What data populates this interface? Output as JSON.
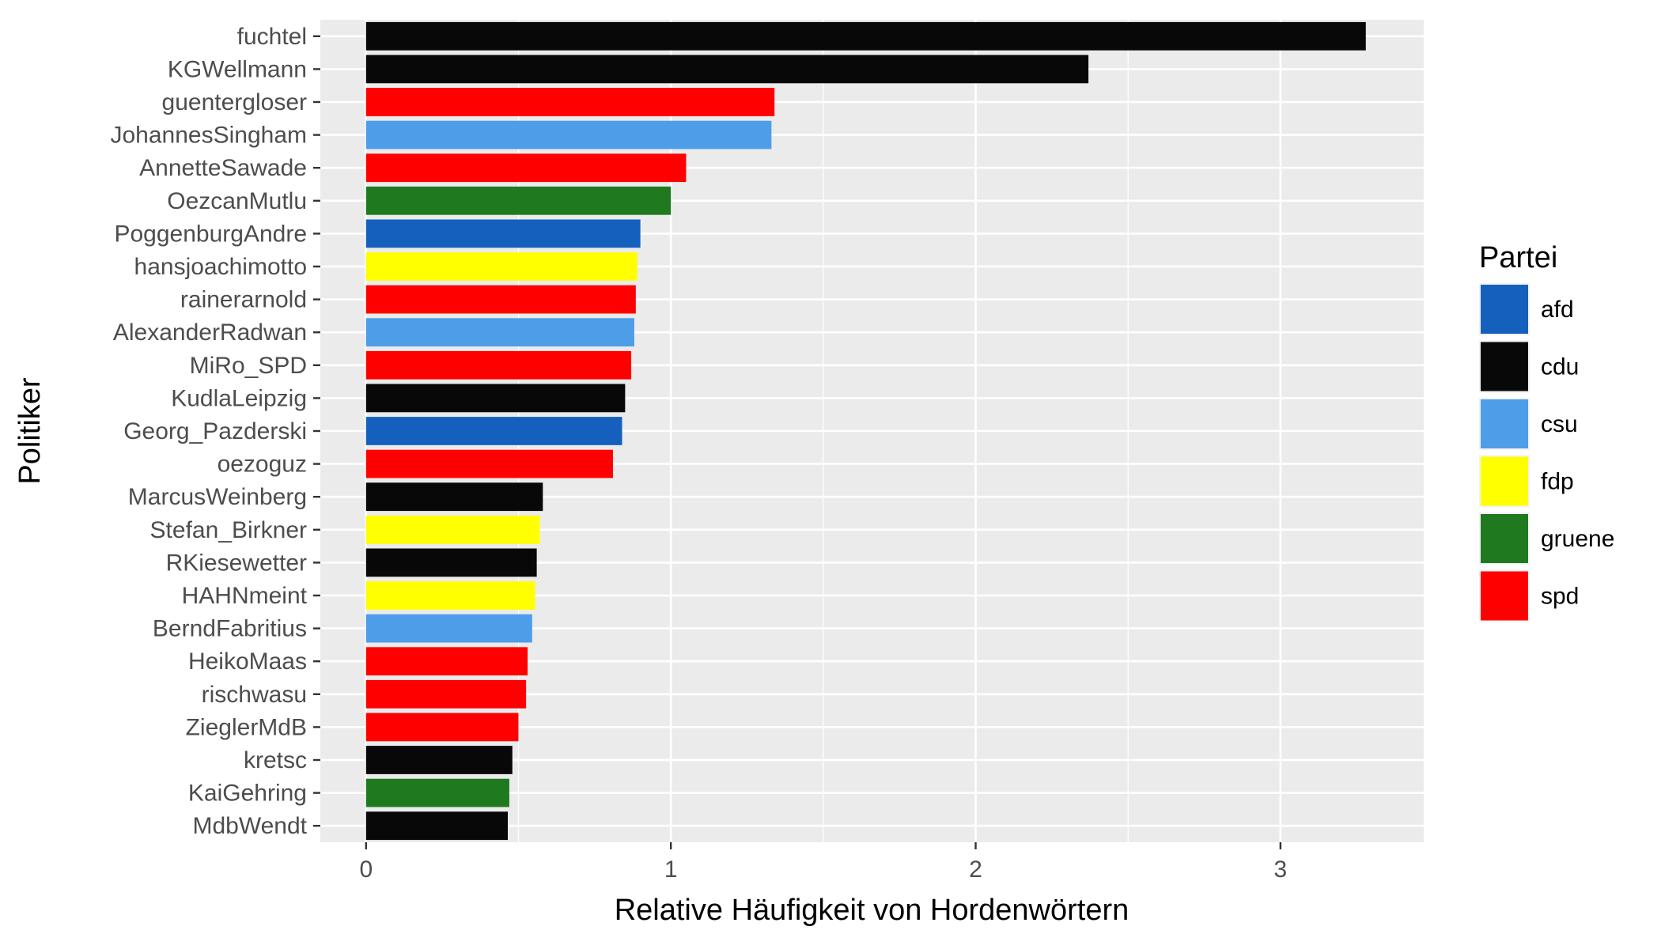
{
  "chart_data": {
    "type": "bar",
    "orientation": "horizontal",
    "xlabel": "Relative Häufigkeit von Hordenwörtern",
    "ylabel": "Politiker",
    "xlim": [
      -0.15,
      3.47
    ],
    "xticks": [
      0,
      1,
      2,
      3
    ],
    "xtick_labels": [
      "0",
      "1",
      "2",
      "3"
    ],
    "grid": true,
    "legend": {
      "title": "Partei",
      "placement": "right",
      "entries": [
        {
          "key": "afd",
          "label": "afd",
          "color": "#1560bd"
        },
        {
          "key": "cdu",
          "label": "cdu",
          "color": "#080808"
        },
        {
          "key": "csu",
          "label": "csu",
          "color": "#4e9de8"
        },
        {
          "key": "fdp",
          "label": "fdp",
          "color": "#ffff00"
        },
        {
          "key": "gruene",
          "label": "gruene",
          "color": "#1f7a1f"
        },
        {
          "key": "spd",
          "label": "spd",
          "color": "#ff0000"
        }
      ]
    },
    "bars": [
      {
        "name": "fuchtel",
        "value": 3.28,
        "party": "cdu"
      },
      {
        "name": "KGWellmann",
        "value": 2.37,
        "party": "cdu"
      },
      {
        "name": "guentergloser",
        "value": 1.34,
        "party": "spd"
      },
      {
        "name": "JohannesSingham",
        "value": 1.33,
        "party": "csu"
      },
      {
        "name": "AnnetteSawade",
        "value": 1.05,
        "party": "spd"
      },
      {
        "name": "OezcanMutlu",
        "value": 1.0,
        "party": "gruene"
      },
      {
        "name": "PoggenburgAndre",
        "value": 0.9,
        "party": "afd"
      },
      {
        "name": "hansjoachimotto",
        "value": 0.89,
        "party": "fdp"
      },
      {
        "name": "rainerarnold",
        "value": 0.885,
        "party": "spd"
      },
      {
        "name": "AlexanderRadwan",
        "value": 0.88,
        "party": "csu"
      },
      {
        "name": "MiRo_SPD",
        "value": 0.87,
        "party": "spd"
      },
      {
        "name": "KudlaLeipzig",
        "value": 0.85,
        "party": "cdu"
      },
      {
        "name": "Georg_Pazderski",
        "value": 0.84,
        "party": "afd"
      },
      {
        "name": "oezoguz",
        "value": 0.81,
        "party": "spd"
      },
      {
        "name": "MarcusWeinberg",
        "value": 0.58,
        "party": "cdu"
      },
      {
        "name": "Stefan_Birkner",
        "value": 0.57,
        "party": "fdp"
      },
      {
        "name": "RKiesewetter",
        "value": 0.56,
        "party": "cdu"
      },
      {
        "name": "HAHNmeint",
        "value": 0.555,
        "party": "fdp"
      },
      {
        "name": "BerndFabritius",
        "value": 0.545,
        "party": "csu"
      },
      {
        "name": "HeikoMaas",
        "value": 0.53,
        "party": "spd"
      },
      {
        "name": "rischwasu",
        "value": 0.525,
        "party": "spd"
      },
      {
        "name": "ZieglerMdB",
        "value": 0.5,
        "party": "spd"
      },
      {
        "name": "kretsc",
        "value": 0.48,
        "party": "cdu"
      },
      {
        "name": "KaiGehring",
        "value": 0.47,
        "party": "gruene"
      },
      {
        "name": "MdbWendt",
        "value": 0.465,
        "party": "cdu"
      }
    ]
  }
}
